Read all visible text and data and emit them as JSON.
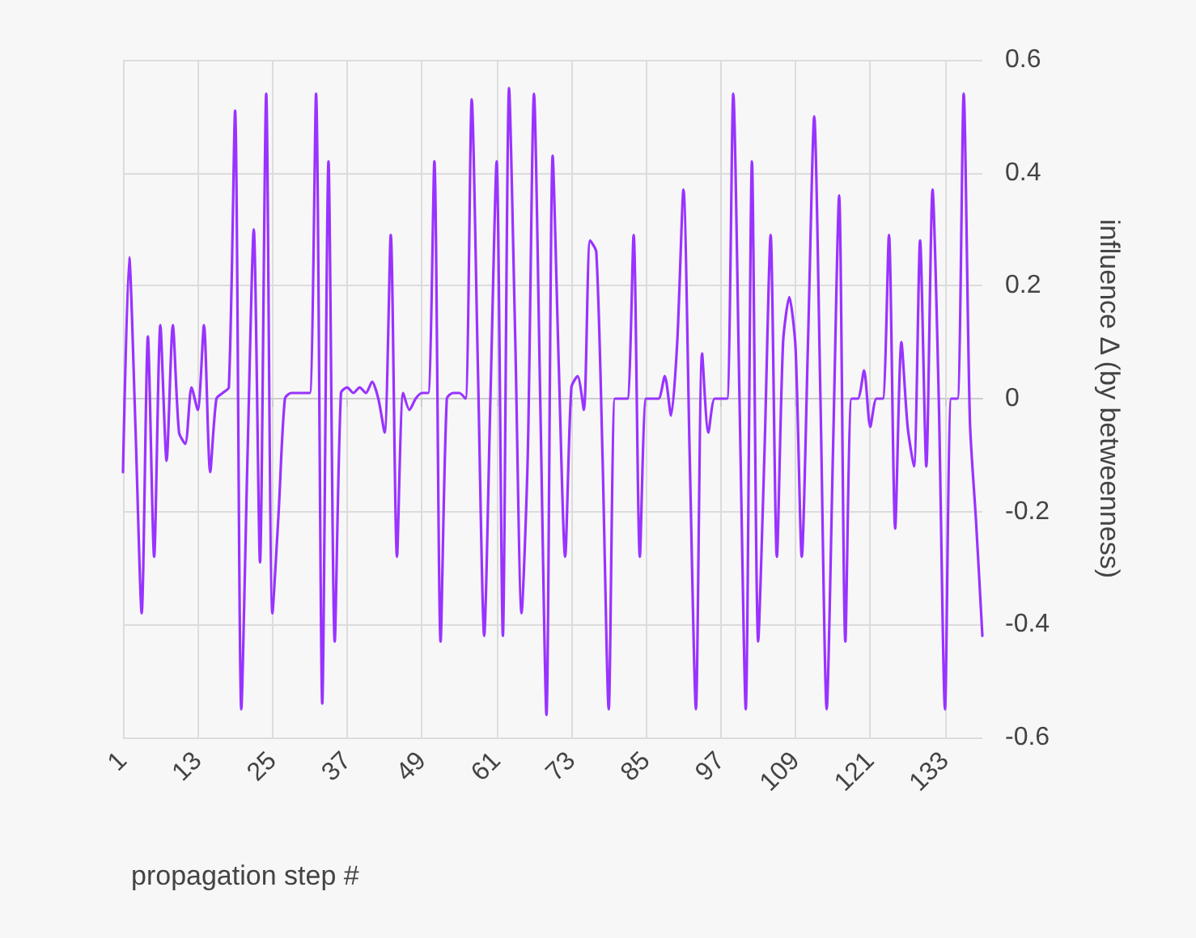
{
  "chart_data": {
    "type": "line",
    "xlabel": "propagation step #",
    "ylabel": "influence Δ (by betweenness)",
    "categories": [
      "1",
      null,
      null,
      null,
      null,
      null,
      null,
      null,
      null,
      null,
      null,
      null,
      "13",
      null,
      null,
      null,
      null,
      null,
      null,
      null,
      null,
      null,
      null,
      null,
      "25",
      null,
      null,
      null,
      null,
      null,
      null,
      null,
      null,
      null,
      null,
      null,
      "37",
      null,
      null,
      null,
      null,
      null,
      null,
      null,
      null,
      null,
      null,
      null,
      "49",
      null,
      null,
      null,
      null,
      null,
      null,
      null,
      null,
      null,
      null,
      null,
      "61",
      null,
      null,
      null,
      null,
      null,
      null,
      null,
      null,
      null,
      null,
      null,
      "73",
      null,
      null,
      null,
      null,
      null,
      null,
      null,
      null,
      null,
      null,
      null,
      "85",
      null,
      null,
      null,
      null,
      null,
      null,
      null,
      null,
      null,
      null,
      null,
      "97",
      null,
      null,
      null,
      null,
      null,
      null,
      null,
      null,
      null,
      null,
      null,
      "109",
      null,
      null,
      null,
      null,
      null,
      null,
      null,
      null,
      null,
      null,
      null,
      "121",
      null,
      null,
      null,
      null,
      null,
      null,
      null,
      null,
      null,
      null,
      null,
      "133",
      null,
      null,
      null,
      null,
      null,
      null
    ],
    "series": [
      {
        "color": "#9933ff",
        "values": [
          -0.13,
          0.25,
          -0.05,
          -0.38,
          0.11,
          -0.28,
          0.13,
          -0.11,
          0.13,
          -0.06,
          -0.08,
          0.02,
          -0.02,
          0.13,
          -0.13,
          0,
          0.01,
          0.02,
          0.51,
          -0.55,
          -0.1,
          0.3,
          -0.29,
          0.54,
          -0.38,
          -0.2,
          0,
          0.01,
          0.01,
          0.01,
          0.01,
          0.54,
          -0.54,
          0.42,
          -0.43,
          0.01,
          0.02,
          0.01,
          0.02,
          0.01,
          0.03,
          0,
          -0.06,
          0.29,
          -0.28,
          0.01,
          -0.02,
          0,
          0.01,
          0.01,
          0.42,
          -0.43,
          0,
          0.01,
          0.01,
          0,
          0.53,
          0.05,
          -0.42,
          0,
          0.42,
          -0.42,
          0.55,
          0.1,
          -0.38,
          -0.1,
          0.54,
          0,
          -0.56,
          0.43,
          0.05,
          -0.28,
          0.02,
          0.04,
          -0.02,
          0.28,
          0.26,
          -0.1,
          -0.55,
          0,
          0,
          0,
          0.29,
          -0.28,
          0,
          0,
          0,
          0.04,
          -0.03,
          0.1,
          0.37,
          -0.1,
          -0.55,
          0.08,
          -0.06,
          0,
          0,
          0,
          0.54,
          0,
          -0.55,
          0.42,
          -0.43,
          -0.1,
          0.29,
          -0.28,
          0.1,
          0.18,
          0.09,
          -0.28,
          0.1,
          0.5,
          0,
          -0.55,
          -0.1,
          0.36,
          -0.43,
          0,
          0,
          0.05,
          -0.05,
          0,
          0,
          0.29,
          -0.23,
          0.1,
          -0.05,
          -0.12,
          0.28,
          -0.12,
          0.37,
          0,
          -0.55,
          0,
          0,
          0.54,
          -0.04,
          -0.22,
          -0.42
        ]
      }
    ],
    "ylim": [
      -0.6,
      0.6
    ],
    "yticks": [
      -0.6,
      -0.4,
      -0.2,
      0,
      0.2,
      0.4,
      0.6
    ],
    "grid": true,
    "marker": "none",
    "line_style": "solid"
  }
}
